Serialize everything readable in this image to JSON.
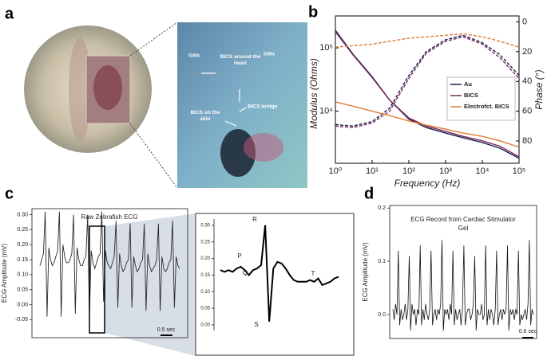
{
  "figure": {
    "panel_labels": [
      "a",
      "b",
      "c",
      "d"
    ]
  },
  "photo": {
    "labels": [
      "Gills",
      "Gills",
      "BICS around the heart",
      "BICS bridge",
      "BICS on the skin"
    ]
  },
  "chart_data": [
    {
      "type": "line",
      "log_x": true,
      "log_y": true,
      "xlabel": "Frequency (Hz)",
      "ylabel": "Modulus (Ohms)",
      "y2label": "Phase (°)",
      "x": [
        1,
        3,
        10,
        30,
        100,
        300,
        1000,
        3000,
        10000,
        30000,
        100000
      ],
      "xlim": [
        1,
        100000
      ],
      "xticks": [
        {
          "value": 1,
          "label": "10⁰"
        },
        {
          "value": 10,
          "label": "10¹"
        },
        {
          "value": 100,
          "label": "10²"
        },
        {
          "value": 1000,
          "label": "10³"
        },
        {
          "value": 10000,
          "label": "10⁴"
        },
        {
          "value": 100000,
          "label": "10⁵"
        }
      ],
      "ylim": [
        1500,
        320000
      ],
      "yticks": [
        {
          "value": 10000,
          "label": "10⁴"
        },
        {
          "value": 100000,
          "label": "10⁵"
        }
      ],
      "y2lim": [
        95,
        -4
      ],
      "y2ticks": [
        0,
        20,
        40,
        60,
        80
      ],
      "legend": "right",
      "series": [
        {
          "name": "Au",
          "color": "#1d1b4d",
          "values": [
            190000,
            80000,
            35000,
            15000,
            7500,
            5500,
            4500,
            3800,
            3200,
            2600,
            1800
          ],
          "phase": [
            69,
            70,
            67,
            58,
            36,
            20,
            12,
            9,
            14,
            22,
            36
          ]
        },
        {
          "name": "BICS",
          "color": "#7a2a5c",
          "values": [
            180000,
            78000,
            34000,
            15000,
            7800,
            5800,
            4800,
            4000,
            3400,
            2800,
            1900
          ],
          "phase": [
            70,
            71,
            68,
            60,
            38,
            21,
            13,
            10,
            15,
            24,
            38
          ]
        },
        {
          "name": "Electrofct. BICS",
          "color": "#e07b39",
          "values": [
            14000,
            12000,
            10000,
            8500,
            7000,
            6000,
            5200,
            4500,
            4000,
            3400,
            2700
          ],
          "phase": [
            17,
            16,
            15,
            13,
            11,
            10,
            9,
            8,
            10,
            13,
            17
          ]
        }
      ]
    },
    {
      "type": "line",
      "title": "Raw Zebrafish ECG",
      "ylabel": "ECG Amplitude (mV)",
      "ylim": [
        -0.11,
        0.32
      ],
      "yticks": [
        -0.05,
        {
          "value": 0,
          "label": "0.00"
        },
        0.05,
        {
          "value": 0.1,
          "label": "0.10"
        },
        0.15,
        {
          "value": 0.2,
          "label": "0.20"
        },
        0.25,
        {
          "value": 0.3,
          "label": "0.30"
        }
      ],
      "color": "#2b2b2b",
      "scale_bar": "0.5 sec",
      "values": [
        0.13,
        0.15,
        0.17,
        0.31,
        -0.04,
        0.19,
        0.15,
        0.13,
        0.14,
        0.16,
        0.18,
        0.31,
        -0.04,
        0.2,
        0.16,
        0.14,
        0.14,
        0.15,
        0.17,
        0.3,
        -0.03,
        0.19,
        0.15,
        0.13,
        0.13,
        0.15,
        0.16,
        0.3,
        -0.04,
        0.18,
        0.14,
        0.12,
        0.14,
        0.16,
        0.17,
        0.31,
        0.01,
        0.18,
        0.14,
        0.13,
        0.12,
        0.14,
        0.16,
        0.28,
        -0.01,
        0.17,
        0.13,
        0.11,
        0.12,
        0.14,
        0.15,
        0.27,
        -0.01,
        0.16,
        0.13,
        0.11,
        0.12,
        0.14,
        0.15,
        0.27,
        -0.02,
        0.17,
        0.13,
        0.11,
        0.12,
        0.13,
        0.15,
        0.27,
        -0.02,
        0.16,
        0.12,
        0.11,
        0.12,
        0.14,
        0.15,
        0.28,
        -0.01,
        0.16,
        0.13,
        0.12
      ]
    },
    {
      "type": "line",
      "ylim": [
        -0.017,
        0.319
      ],
      "yticks": [
        {
          "value": 0,
          "label": "0.00"
        },
        0.05,
        {
          "value": 0.1,
          "label": "0.10"
        },
        0.15,
        {
          "value": 0.2,
          "label": "0.20"
        },
        0.25,
        {
          "value": 0.3,
          "label": "0.30"
        }
      ],
      "color": "#000000",
      "annotations": [
        "P",
        "Q",
        "R",
        "S",
        "T"
      ],
      "values": [
        0.165,
        0.16,
        0.165,
        0.16,
        0.17,
        0.175,
        0.165,
        0.15,
        0.165,
        0.17,
        0.18,
        0.3,
        0.01,
        0.17,
        0.19,
        0.185,
        0.17,
        0.15,
        0.135,
        0.13,
        0.13,
        0.13,
        0.135,
        0.13,
        0.14,
        0.12,
        0.125,
        0.13,
        0.14,
        0.145
      ]
    },
    {
      "type": "line",
      "title": "ECG Record from Cardiac Stimulator Gel",
      "ylabel": "ECG Amplitude (mV)",
      "ylim": [
        -0.045,
        0.205
      ],
      "yticks": [
        {
          "value": 0,
          "label": "0.0"
        },
        0.1,
        0.2
      ],
      "color": "#111111",
      "scale_bar": "0.6 sec",
      "values": [
        0.01,
        -0.01,
        0.02,
        0.0,
        0.12,
        -0.02,
        0.01,
        -0.01,
        0.0,
        0.02,
        -0.01,
        0.01,
        0.11,
        -0.03,
        0.02,
        0.0,
        0.01,
        -0.02,
        0.01,
        0.0,
        0.13,
        -0.02,
        0.01,
        -0.01,
        0.02,
        0.0,
        -0.01,
        0.01,
        0.12,
        -0.02,
        0.0,
        0.01,
        -0.01,
        0.01,
        0.0,
        0.02,
        0.14,
        -0.03,
        0.01,
        0.0,
        0.01,
        -0.01,
        0.02,
        0.0,
        0.12,
        -0.02,
        0.01,
        -0.01,
        0.0,
        0.01,
        -0.02,
        0.01,
        0.13,
        -0.02,
        0.0,
        0.01,
        0.01,
        -0.01,
        0.0,
        0.02,
        0.11,
        -0.03,
        0.01,
        0.0,
        0.0,
        0.02,
        -0.01,
        0.0,
        0.13,
        -0.02,
        0.01,
        -0.01,
        0.01,
        0.0,
        -0.02,
        0.01,
        0.12,
        -0.02,
        0.0,
        0.01,
        -0.01,
        0.01,
        0.0,
        0.01,
        0.13,
        -0.03,
        0.01,
        0.0,
        0.01,
        -0.01,
        0.01,
        0.0,
        0.12,
        -0.02,
        0.0,
        -0.01,
        0.0,
        0.01,
        -0.01,
        0.02,
        0.14,
        -0.02,
        0.01,
        0.0
      ]
    }
  ]
}
